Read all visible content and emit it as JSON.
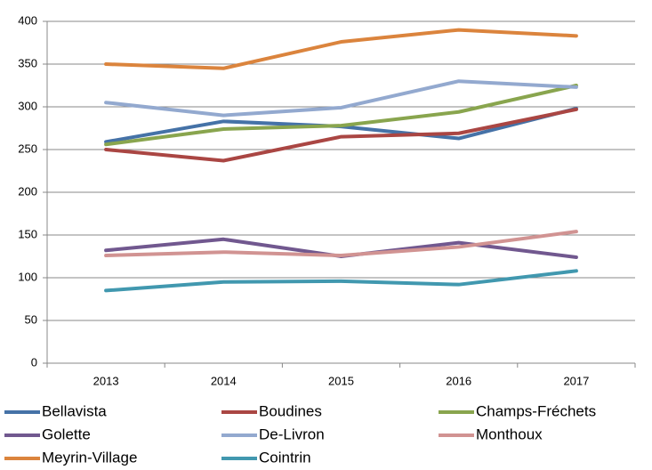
{
  "chart_data": {
    "type": "line",
    "categories": [
      "2013",
      "2014",
      "2015",
      "2016",
      "2017"
    ],
    "series": [
      {
        "name": "Bellavista",
        "color": "#4572a7",
        "values": [
          259,
          283,
          277,
          263,
          298
        ]
      },
      {
        "name": "Boudines",
        "color": "#aa4643",
        "values": [
          250,
          237,
          265,
          269,
          297
        ]
      },
      {
        "name": "Champs-Fréchets",
        "color": "#89a54e",
        "values": [
          256,
          274,
          278,
          294,
          325
        ]
      },
      {
        "name": "Golette",
        "color": "#71588f",
        "values": [
          132,
          145,
          125,
          141,
          124
        ]
      },
      {
        "name": "De-Livron",
        "color": "#93a9cf",
        "values": [
          305,
          290,
          299,
          330,
          323
        ]
      },
      {
        "name": "Monthoux",
        "color": "#d19392",
        "values": [
          126,
          130,
          126,
          136,
          154
        ]
      },
      {
        "name": "Meyrin-Village",
        "color": "#db843d",
        "values": [
          350,
          345,
          376,
          390,
          383
        ]
      },
      {
        "name": "Cointrin",
        "color": "#4198af",
        "values": [
          85,
          95,
          96,
          92,
          108
        ]
      }
    ],
    "ylim": [
      0,
      400
    ],
    "yticks": [
      0,
      50,
      100,
      150,
      200,
      250,
      300,
      350,
      400
    ],
    "grid": true
  }
}
